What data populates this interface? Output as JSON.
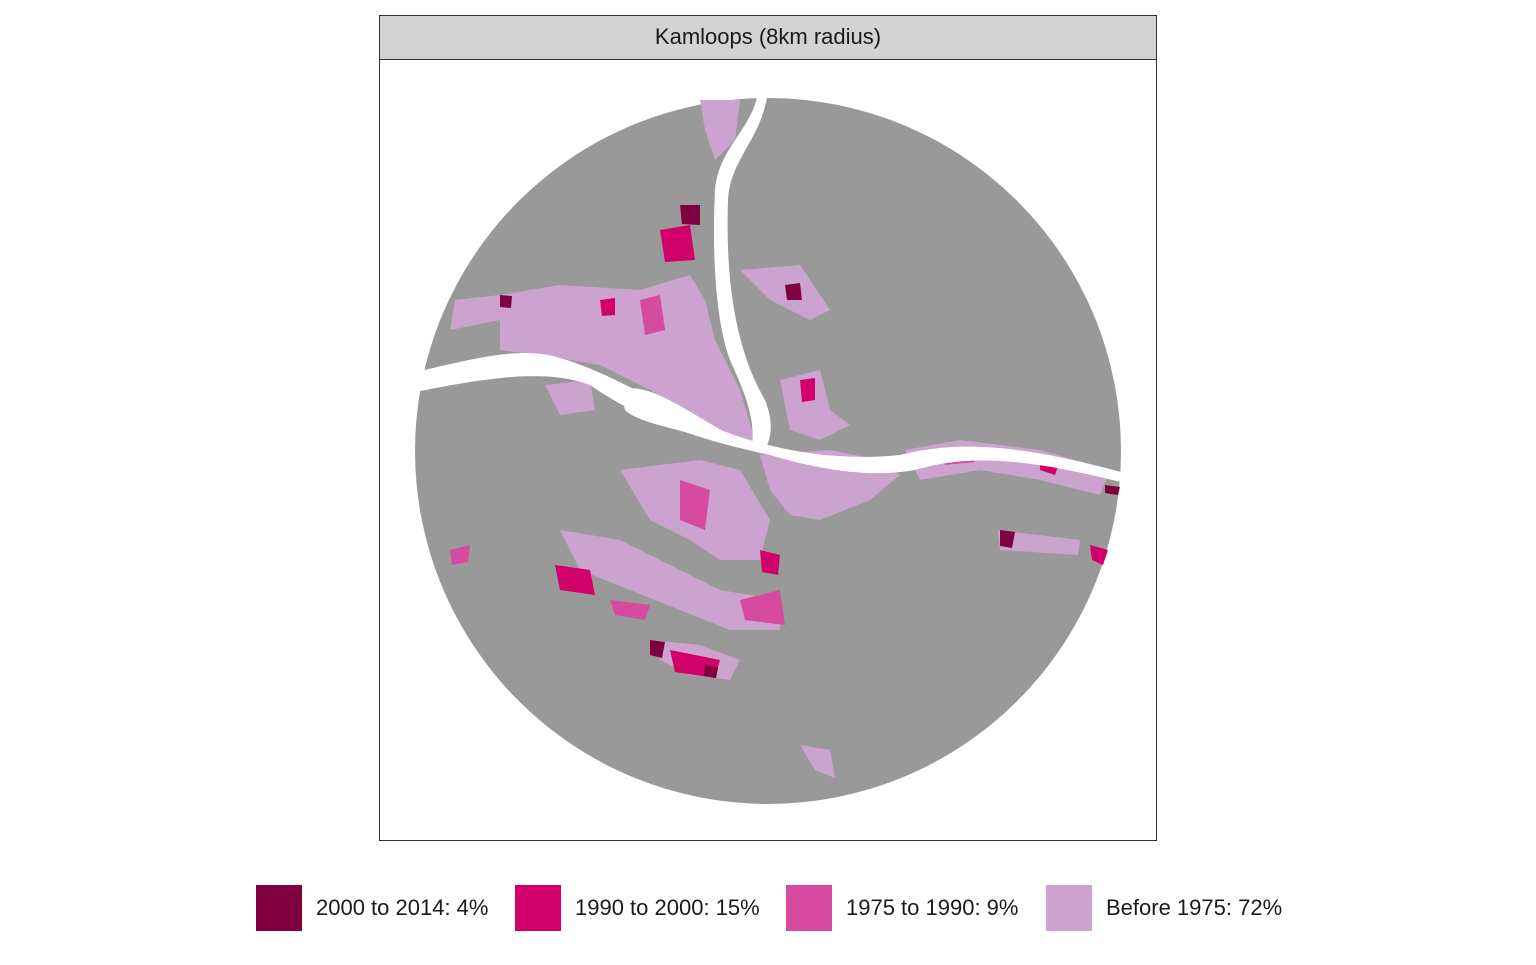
{
  "panel": {
    "title": "Kamloops (8km radius)"
  },
  "legend": {
    "items": [
      {
        "label": "2000 to 2014: 4%",
        "color": "#80003f"
      },
      {
        "label": "1990 to 2000: 15%",
        "color": "#d2006a"
      },
      {
        "label": "1975 to 1990: 9%",
        "color": "#d64b9f"
      },
      {
        "label": "Before 1975: 72%",
        "color": "#cca3cf"
      }
    ]
  }
}
